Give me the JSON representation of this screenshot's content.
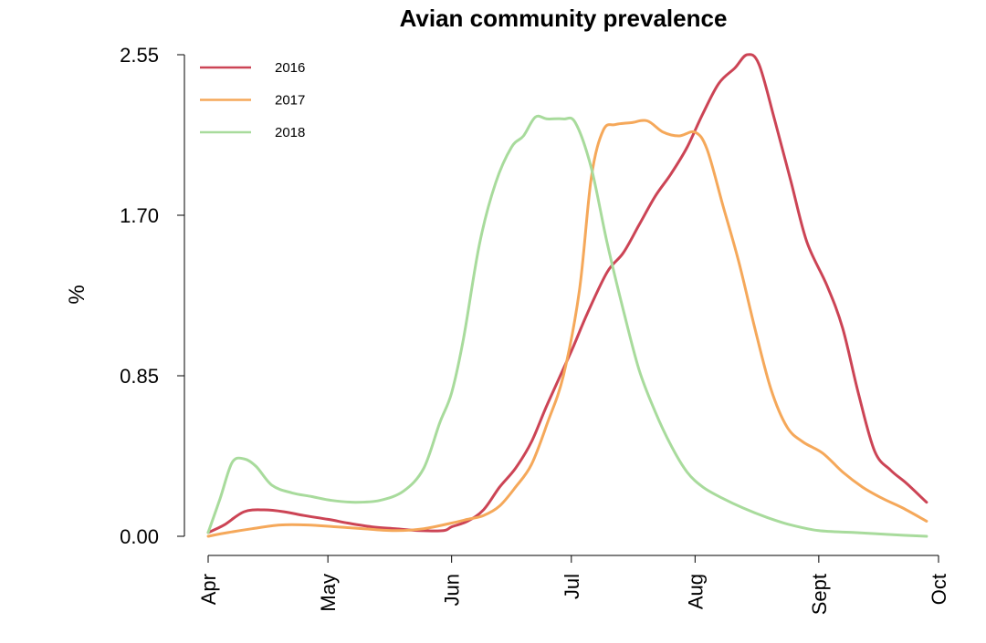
{
  "chart_data": {
    "type": "line",
    "title": "Avian community prevalence",
    "xlabel": "",
    "ylabel": "%",
    "x_ticks": [
      "Apr",
      "May",
      "Jun",
      "Jul",
      "Aug",
      "Sept",
      "Oct"
    ],
    "y_ticks": [
      "0.00",
      "0.85",
      "1.70",
      "2.55"
    ],
    "ylim": [
      0,
      2.55
    ],
    "xlim": [
      "Apr 1",
      "Oct 1"
    ],
    "grid": false,
    "legend_position": "top-left",
    "series": [
      {
        "name": "2016",
        "color": "#cc4455",
        "points": [
          [
            "Apr 1",
            0.02
          ],
          [
            "Apr 5",
            0.06
          ],
          [
            "Apr 10",
            0.13
          ],
          [
            "Apr 15",
            0.14
          ],
          [
            "Apr 20",
            0.13
          ],
          [
            "Apr 25",
            0.11
          ],
          [
            "May 1",
            0.09
          ],
          [
            "May 6",
            0.07
          ],
          [
            "May 12",
            0.05
          ],
          [
            "May 18",
            0.04
          ],
          [
            "May 24",
            0.03
          ],
          [
            "May 30",
            0.03
          ],
          [
            "Jun 1",
            0.05
          ],
          [
            "Jun 5",
            0.08
          ],
          [
            "Jun 9",
            0.14
          ],
          [
            "Jun 13",
            0.26
          ],
          [
            "Jun 17",
            0.36
          ],
          [
            "Jun 21",
            0.5
          ],
          [
            "Jun 25",
            0.7
          ],
          [
            "Jul 1",
            0.98
          ],
          [
            "Jul 5",
            1.18
          ],
          [
            "Jul 10",
            1.4
          ],
          [
            "Jul 14",
            1.5
          ],
          [
            "Jul 18",
            1.65
          ],
          [
            "Jul 22",
            1.8
          ],
          [
            "Jul 26",
            1.92
          ],
          [
            "Jul 30",
            2.06
          ],
          [
            "Aug 3",
            2.24
          ],
          [
            "Aug 7",
            2.4
          ],
          [
            "Aug 11",
            2.48
          ],
          [
            "Aug 14",
            2.55
          ],
          [
            "Aug 17",
            2.5
          ],
          [
            "Aug 21",
            2.2
          ],
          [
            "Aug 25",
            1.88
          ],
          [
            "Aug 29",
            1.56
          ],
          [
            "Sept 3",
            1.33
          ],
          [
            "Sept 7",
            1.1
          ],
          [
            "Sept 11",
            0.75
          ],
          [
            "Sept 15",
            0.45
          ],
          [
            "Sept 19",
            0.35
          ],
          [
            "Sept 23",
            0.28
          ],
          [
            "Sept 28",
            0.18
          ]
        ]
      },
      {
        "name": "2017",
        "color": "#f5a85a",
        "points": [
          [
            "Apr 1",
            0.0
          ],
          [
            "Apr 6",
            0.02
          ],
          [
            "Apr 12",
            0.04
          ],
          [
            "Apr 19",
            0.06
          ],
          [
            "Apr 26",
            0.06
          ],
          [
            "May 3",
            0.05
          ],
          [
            "May 10",
            0.04
          ],
          [
            "May 18",
            0.03
          ],
          [
            "May 25",
            0.04
          ],
          [
            "Jun 1",
            0.07
          ],
          [
            "Jun 5",
            0.09
          ],
          [
            "Jun 9",
            0.11
          ],
          [
            "Jun 13",
            0.16
          ],
          [
            "Jun 17",
            0.26
          ],
          [
            "Jun 21",
            0.38
          ],
          [
            "Jun 25",
            0.6
          ],
          [
            "Jun 29",
            0.85
          ],
          [
            "Jul 3",
            1.3
          ],
          [
            "Jul 6",
            1.9
          ],
          [
            "Jul 9",
            2.15
          ],
          [
            "Jul 12",
            2.18
          ],
          [
            "Jul 16",
            2.19
          ],
          [
            "Jul 20",
            2.2
          ],
          [
            "Jul 24",
            2.14
          ],
          [
            "Jul 28",
            2.12
          ],
          [
            "Aug 1",
            2.14
          ],
          [
            "Aug 4",
            2.05
          ],
          [
            "Aug 8",
            1.75
          ],
          [
            "Aug 12",
            1.45
          ],
          [
            "Aug 16",
            1.1
          ],
          [
            "Aug 20",
            0.78
          ],
          [
            "Aug 24",
            0.58
          ],
          [
            "Aug 28",
            0.5
          ],
          [
            "Sept 2",
            0.44
          ],
          [
            "Sept 7",
            0.34
          ],
          [
            "Sept 12",
            0.26
          ],
          [
            "Sept 17",
            0.2
          ],
          [
            "Sept 22",
            0.15
          ],
          [
            "Sept 28",
            0.08
          ]
        ]
      },
      {
        "name": "2018",
        "color": "#a8db9c",
        "points": [
          [
            "Apr 1",
            0.02
          ],
          [
            "Apr 4",
            0.2
          ],
          [
            "Apr 7",
            0.39
          ],
          [
            "Apr 10",
            0.41
          ],
          [
            "Apr 13",
            0.37
          ],
          [
            "Apr 17",
            0.27
          ],
          [
            "Apr 22",
            0.23
          ],
          [
            "Apr 27",
            0.21
          ],
          [
            "May 2",
            0.19
          ],
          [
            "May 8",
            0.18
          ],
          [
            "May 14",
            0.19
          ],
          [
            "May 20",
            0.24
          ],
          [
            "May 25",
            0.36
          ],
          [
            "May 29",
            0.6
          ],
          [
            "Jun 1",
            0.76
          ],
          [
            "Jun 4",
            1.05
          ],
          [
            "Jun 8",
            1.55
          ],
          [
            "Jun 12",
            1.87
          ],
          [
            "Jun 16",
            2.06
          ],
          [
            "Jun 19",
            2.12
          ],
          [
            "Jun 22",
            2.22
          ],
          [
            "Jun 25",
            2.21
          ],
          [
            "Jun 29",
            2.21
          ],
          [
            "Jul 2",
            2.19
          ],
          [
            "Jul 6",
            1.95
          ],
          [
            "Jul 10",
            1.55
          ],
          [
            "Jul 14",
            1.2
          ],
          [
            "Jul 18",
            0.88
          ],
          [
            "Jul 22",
            0.66
          ],
          [
            "Jul 26",
            0.48
          ],
          [
            "Jul 30",
            0.34
          ],
          [
            "Aug 3",
            0.26
          ],
          [
            "Aug 8",
            0.2
          ],
          [
            "Aug 13",
            0.15
          ],
          [
            "Aug 19",
            0.1
          ],
          [
            "Aug 25",
            0.06
          ],
          [
            "Sept 1",
            0.03
          ],
          [
            "Sept 10",
            0.02
          ],
          [
            "Sept 18",
            0.01
          ],
          [
            "Sept 28",
            0.0
          ]
        ]
      }
    ]
  }
}
